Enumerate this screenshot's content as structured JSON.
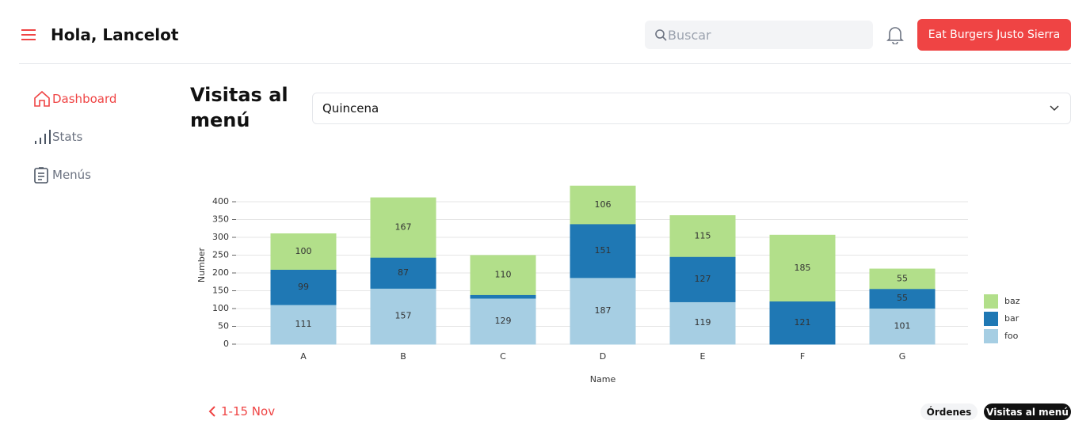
{
  "header": {
    "greeting": "Hola, Lancelot",
    "search_placeholder": "Buscar",
    "store_button": "Eat Burgers Justo Sierra"
  },
  "sidebar": {
    "items": [
      "Dashboard",
      "Stats",
      "Menús"
    ]
  },
  "page": {
    "title": "Visitas al menú",
    "period_select": "Quincena",
    "date_range": "1-15 Nov",
    "tabs": [
      "Órdenes",
      "Visitas al menú"
    ]
  },
  "chart_data": {
    "type": "stacked-bar",
    "xlabel": "Name",
    "ylabel": "Number",
    "categories": [
      "A",
      "B",
      "C",
      "D",
      "E",
      "F",
      "G"
    ],
    "series": [
      {
        "name": "foo",
        "color": "#a6cee3",
        "values": [
          111,
          157,
          129,
          187,
          119,
          0,
          101
        ]
      },
      {
        "name": "bar",
        "color": "#1f78b4",
        "values": [
          99,
          87,
          10,
          151,
          127,
          121,
          55
        ]
      },
      {
        "name": "baz",
        "color": "#b2df8a",
        "values": [
          100,
          167,
          110,
          106,
          115,
          185,
          55
        ]
      }
    ],
    "ylim": [
      0,
      450
    ],
    "yticks": [
      0,
      50,
      100,
      150,
      200,
      250,
      300,
      350,
      400
    ],
    "grid": true,
    "legend": "right"
  }
}
